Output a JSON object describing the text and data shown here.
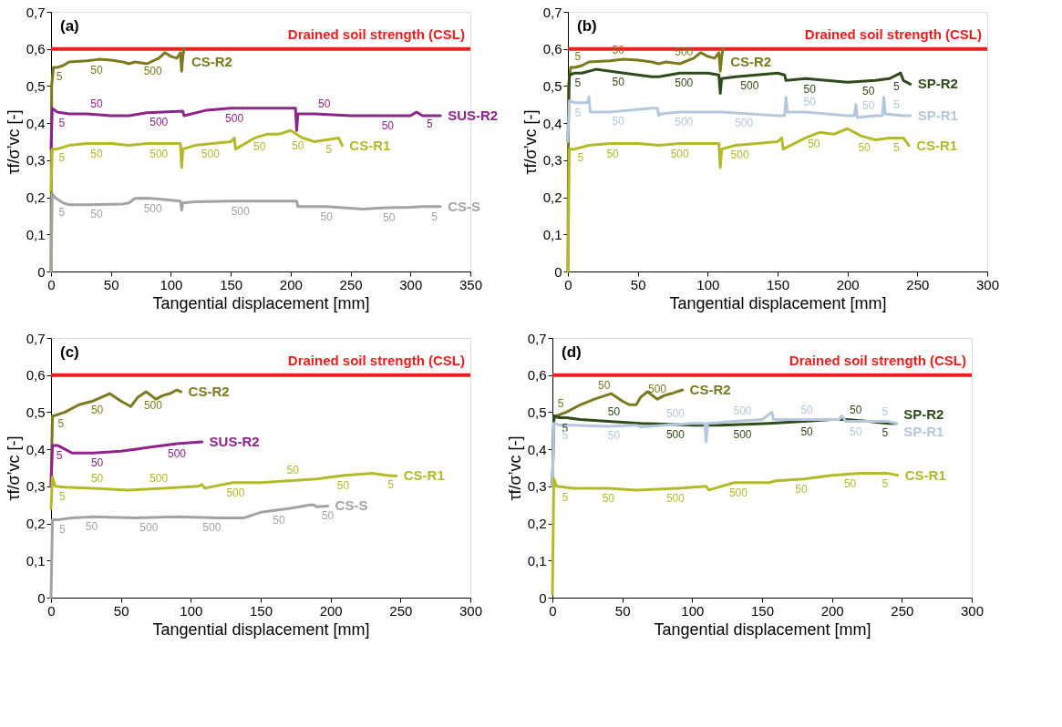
{
  "chart_data": [
    {
      "type": "line",
      "title": "(a)",
      "xlabel": "Tangential displacement [mm]",
      "ylabel": "τf/σ’vc [-]",
      "xlim": [
        0,
        350
      ],
      "xticks": [
        0,
        50,
        100,
        150,
        200,
        250,
        300,
        350
      ],
      "ylim": [
        0,
        0.7
      ],
      "yticks": [
        {
          "value": 0,
          "label": "0"
        },
        {
          "value": 0.1,
          "label": "0,1"
        },
        {
          "value": 0.2,
          "label": "0,2"
        },
        {
          "value": 0.3,
          "label": "0,3"
        },
        {
          "value": 0.4,
          "label": "0,4"
        },
        {
          "value": 0.5,
          "label": "0,5"
        },
        {
          "value": 0.6,
          "label": "0,6"
        },
        {
          "value": 0.7,
          "label": "0,7"
        }
      ],
      "ref_lines": [
        {
          "axis": "y",
          "value": 0.6,
          "label": "Drained soil strength (CSL)",
          "color": "#ee1c1c"
        }
      ],
      "series": [
        {
          "name": "CS-R2",
          "color": "#7b7a1f",
          "x": [
            0,
            0.5,
            2,
            5,
            10,
            15,
            30,
            40,
            50,
            60,
            65,
            70,
            80,
            90,
            95,
            100,
            105,
            108,
            109,
            110,
            111
          ],
          "values": [
            0,
            0.5,
            0.55,
            0.55,
            0.555,
            0.565,
            0.568,
            0.572,
            0.57,
            0.565,
            0.56,
            0.565,
            0.56,
            0.575,
            0.59,
            0.58,
            0.575,
            0.59,
            0.54,
            0.58,
            0.6
          ]
        },
        {
          "name": "SUS-R2",
          "color": "#8e2489",
          "x": [
            0,
            1,
            5,
            15,
            30,
            50,
            65,
            80,
            110,
            111,
            130,
            150,
            180,
            200,
            204,
            205,
            206,
            220,
            250,
            280,
            300,
            305,
            310,
            325
          ],
          "values": [
            0.33,
            0.44,
            0.43,
            0.425,
            0.425,
            0.42,
            0.42,
            0.428,
            0.432,
            0.42,
            0.435,
            0.44,
            0.44,
            0.44,
            0.44,
            0.38,
            0.425,
            0.425,
            0.42,
            0.42,
            0.42,
            0.43,
            0.42,
            0.42
          ]
        },
        {
          "name": "CS-R1",
          "color": "#b3ba2a",
          "x": [
            0,
            1,
            5,
            15,
            30,
            50,
            65,
            80,
            100,
            108,
            109,
            110,
            120,
            150,
            153,
            154,
            170,
            180,
            190,
            200,
            210,
            220,
            230,
            240,
            243
          ],
          "values": [
            0.22,
            0.33,
            0.33,
            0.34,
            0.345,
            0.345,
            0.34,
            0.345,
            0.345,
            0.345,
            0.28,
            0.33,
            0.34,
            0.35,
            0.36,
            0.33,
            0.36,
            0.37,
            0.37,
            0.38,
            0.36,
            0.35,
            0.355,
            0.36,
            0.34
          ]
        },
        {
          "name": "CS-S",
          "color": "#a3a3a3",
          "x": [
            0,
            1,
            3,
            10,
            15,
            30,
            60,
            65,
            70,
            80,
            90,
            108,
            109,
            110,
            120,
            150,
            200,
            205,
            206,
            230,
            260,
            280,
            300,
            310,
            325
          ],
          "values": [
            0,
            0.21,
            0.2,
            0.185,
            0.18,
            0.18,
            0.182,
            0.185,
            0.197,
            0.198,
            0.195,
            0.19,
            0.165,
            0.185,
            0.188,
            0.19,
            0.19,
            0.19,
            0.175,
            0.175,
            0.168,
            0.172,
            0.173,
            0.175,
            0.175
          ]
        }
      ],
      "annotations": [
        {
          "text": "5",
          "x": 7,
          "y": 0.552
        },
        {
          "text": "50",
          "x": 38,
          "y": 0.571
        },
        {
          "text": "500",
          "x": 85,
          "y": 0.567
        },
        {
          "text": "5",
          "x": 9,
          "y": 0.427
        },
        {
          "text": "50",
          "x": 38,
          "y": 0.424
        },
        {
          "text": "500",
          "x": 90,
          "y": 0.429
        },
        {
          "text": "500",
          "x": 153,
          "y": 0.44
        },
        {
          "text": "50",
          "x": 228,
          "y": 0.424
        },
        {
          "text": "50",
          "x": 281,
          "y": 0.42
        },
        {
          "text": "5",
          "x": 316,
          "y": 0.425
        },
        {
          "text": "5",
          "x": 9,
          "y": 0.334
        },
        {
          "text": "50",
          "x": 38,
          "y": 0.345
        },
        {
          "text": "500",
          "x": 90,
          "y": 0.345
        },
        {
          "text": "500",
          "x": 133,
          "y": 0.344
        },
        {
          "text": "50",
          "x": 174,
          "y": 0.364
        },
        {
          "text": "50",
          "x": 206,
          "y": 0.367
        },
        {
          "text": "5",
          "x": 232,
          "y": 0.356
        },
        {
          "text": "5",
          "x": 9,
          "y": 0.187
        },
        {
          "text": "50",
          "x": 38,
          "y": 0.181
        },
        {
          "text": "500",
          "x": 85,
          "y": 0.196
        },
        {
          "text": "500",
          "x": 158,
          "y": 0.19
        },
        {
          "text": "50",
          "x": 230,
          "y": 0.175
        },
        {
          "text": "50",
          "x": 282,
          "y": 0.172
        },
        {
          "text": "5",
          "x": 320,
          "y": 0.175
        }
      ]
    },
    {
      "type": "line",
      "title": "(b)",
      "xlabel": "Tangential displacement [mm]",
      "ylabel": "τf/σ’vc [-]",
      "xlim": [
        0,
        300
      ],
      "xticks": [
        0,
        50,
        100,
        150,
        200,
        250,
        300
      ],
      "ylim": [
        0,
        0.7
      ],
      "yticks": [
        {
          "value": 0,
          "label": "0"
        },
        {
          "value": 0.1,
          "label": "0,1"
        },
        {
          "value": 0.2,
          "label": "0,2"
        },
        {
          "value": 0.3,
          "label": "0,3"
        },
        {
          "value": 0.4,
          "label": "0,4"
        },
        {
          "value": 0.5,
          "label": "0,5"
        },
        {
          "value": 0.6,
          "label": "0,6"
        },
        {
          "value": 0.7,
          "label": "0,7"
        }
      ],
      "ref_lines": [
        {
          "axis": "y",
          "value": 0.6,
          "label": "Drained soil strength (CSL)",
          "color": "#ee1c1c"
        }
      ],
      "series": [
        {
          "name": "CS-R2",
          "color": "#7b7a1f",
          "x": [
            0,
            0.5,
            2,
            5,
            10,
            15,
            30,
            40,
            50,
            60,
            65,
            70,
            80,
            90,
            95,
            100,
            105,
            108,
            109,
            110,
            111
          ],
          "values": [
            0,
            0.5,
            0.55,
            0.55,
            0.555,
            0.565,
            0.568,
            0.572,
            0.57,
            0.565,
            0.56,
            0.565,
            0.56,
            0.575,
            0.59,
            0.58,
            0.575,
            0.59,
            0.54,
            0.58,
            0.6
          ]
        },
        {
          "name": "SP-R2",
          "color": "#2f4a1b",
          "x": [
            0,
            1,
            5,
            10,
            20,
            40,
            60,
            65,
            80,
            100,
            108,
            109,
            110,
            120,
            150,
            155,
            156,
            170,
            200,
            220,
            230,
            238,
            240,
            245
          ],
          "values": [
            0.35,
            0.53,
            0.535,
            0.535,
            0.545,
            0.535,
            0.525,
            0.525,
            0.535,
            0.535,
            0.53,
            0.48,
            0.52,
            0.525,
            0.535,
            0.53,
            0.515,
            0.52,
            0.51,
            0.515,
            0.52,
            0.535,
            0.515,
            0.505
          ]
        },
        {
          "name": "SP-R1",
          "color": "#b5c7dd",
          "x": [
            0,
            1,
            5,
            14,
            15,
            16,
            30,
            60,
            64,
            65,
            66,
            80,
            100,
            110,
            130,
            150,
            155,
            156,
            157,
            170,
            200,
            205,
            206,
            207,
            220,
            225,
            226,
            227,
            240,
            245
          ],
          "values": [
            0.35,
            0.46,
            0.455,
            0.455,
            0.47,
            0.43,
            0.43,
            0.44,
            0.44,
            0.42,
            0.425,
            0.43,
            0.43,
            0.43,
            0.425,
            0.42,
            0.42,
            0.47,
            0.43,
            0.43,
            0.42,
            0.42,
            0.45,
            0.415,
            0.42,
            0.42,
            0.47,
            0.425,
            0.42,
            0.42
          ]
        },
        {
          "name": "CS-R1",
          "color": "#b3ba2a",
          "x": [
            0,
            1,
            5,
            15,
            30,
            50,
            65,
            80,
            100,
            108,
            109,
            110,
            120,
            150,
            153,
            154,
            170,
            180,
            190,
            200,
            210,
            220,
            230,
            240,
            244
          ],
          "values": [
            0,
            0.33,
            0.33,
            0.34,
            0.345,
            0.345,
            0.34,
            0.345,
            0.345,
            0.345,
            0.28,
            0.33,
            0.34,
            0.35,
            0.36,
            0.33,
            0.36,
            0.375,
            0.37,
            0.385,
            0.365,
            0.355,
            0.36,
            0.36,
            0.34
          ]
        }
      ],
      "annotations": [
        {
          "text": "5",
          "x": 7,
          "y": 0.552
        },
        {
          "text": "50",
          "x": 36,
          "y": 0.57
        },
        {
          "text": "500",
          "x": 83,
          "y": 0.565
        },
        {
          "text": "5",
          "x": 7,
          "y": 0.535
        },
        {
          "text": "50",
          "x": 36,
          "y": 0.537
        },
        {
          "text": "500",
          "x": 83,
          "y": 0.535
        },
        {
          "text": "500",
          "x": 130,
          "y": 0.528
        },
        {
          "text": "50",
          "x": 173,
          "y": 0.519
        },
        {
          "text": "50",
          "x": 215,
          "y": 0.514
        },
        {
          "text": "5",
          "x": 235,
          "y": 0.525
        },
        {
          "text": "5",
          "x": 7,
          "y": 0.455
        },
        {
          "text": "50",
          "x": 36,
          "y": 0.432
        },
        {
          "text": "500",
          "x": 83,
          "y": 0.43
        },
        {
          "text": "500",
          "x": 126,
          "y": 0.428
        },
        {
          "text": "50",
          "x": 173,
          "y": 0.43
        },
        {
          "text": "50",
          "x": 215,
          "y": 0.42
        },
        {
          "text": "5",
          "x": 235,
          "y": 0.423
        },
        {
          "text": "5",
          "x": 9,
          "y": 0.334
        },
        {
          "text": "50",
          "x": 32,
          "y": 0.345
        },
        {
          "text": "500",
          "x": 80,
          "y": 0.345
        },
        {
          "text": "500",
          "x": 123,
          "y": 0.341
        },
        {
          "text": "50",
          "x": 176,
          "y": 0.37
        },
        {
          "text": "50",
          "x": 212,
          "y": 0.362
        },
        {
          "text": "5",
          "x": 235,
          "y": 0.36
        }
      ]
    },
    {
      "type": "line",
      "title": "(c)",
      "xlabel": "Tangential displacement [mm]",
      "ylabel": "τf/σ’vc [-]",
      "xlim": [
        0,
        300
      ],
      "xticks": [
        0,
        50,
        100,
        150,
        200,
        250,
        300
      ],
      "ylim": [
        0,
        0.7
      ],
      "yticks": [
        {
          "value": 0,
          "label": "0"
        },
        {
          "value": 0.1,
          "label": "0,1"
        },
        {
          "value": 0.2,
          "label": "0,2"
        },
        {
          "value": 0.3,
          "label": "0,3"
        },
        {
          "value": 0.4,
          "label": "0,4"
        },
        {
          "value": 0.5,
          "label": "0,5"
        },
        {
          "value": 0.6,
          "label": "0,6"
        },
        {
          "value": 0.7,
          "label": "0,7"
        }
      ],
      "ref_lines": [
        {
          "axis": "y",
          "value": 0.6,
          "label": "Drained soil strength (CSL)",
          "color": "#ee1c1c"
        }
      ],
      "series": [
        {
          "name": "CS-R2",
          "color": "#7b7a1f",
          "x": [
            0,
            1,
            2,
            10,
            20,
            30,
            42,
            50,
            57,
            62,
            68,
            75,
            80,
            85,
            90,
            93
          ],
          "values": [
            0.3,
            0.49,
            0.49,
            0.5,
            0.52,
            0.53,
            0.55,
            0.53,
            0.515,
            0.54,
            0.555,
            0.535,
            0.545,
            0.55,
            0.56,
            0.555
          ]
        },
        {
          "name": "SUS-R2",
          "color": "#8e2489",
          "x": [
            0,
            1,
            5,
            10,
            15,
            30,
            50,
            60,
            70,
            90,
            108
          ],
          "values": [
            0.3,
            0.41,
            0.41,
            0.4,
            0.39,
            0.39,
            0.395,
            0.4,
            0.405,
            0.415,
            0.42
          ]
        },
        {
          "name": "CS-R1",
          "color": "#b3ba2a",
          "x": [
            0,
            1,
            3,
            10,
            30,
            55,
            80,
            105,
            108,
            110,
            130,
            150,
            170,
            190,
            210,
            230,
            240,
            247
          ],
          "values": [
            0.24,
            0.325,
            0.3,
            0.298,
            0.295,
            0.29,
            0.295,
            0.3,
            0.305,
            0.295,
            0.31,
            0.31,
            0.315,
            0.32,
            0.33,
            0.335,
            0.33,
            0.328
          ]
        },
        {
          "name": "CS-S",
          "color": "#a3a3a3",
          "x": [
            0,
            1,
            5,
            15,
            30,
            60,
            90,
            120,
            138,
            150,
            170,
            185,
            188,
            190,
            198
          ],
          "values": [
            0,
            0.21,
            0.21,
            0.215,
            0.218,
            0.215,
            0.218,
            0.215,
            0.215,
            0.23,
            0.24,
            0.25,
            0.25,
            0.245,
            0.247
          ]
        }
      ],
      "annotations": [
        {
          "text": "5",
          "x": 7,
          "y": 0.497
        },
        {
          "text": "50",
          "x": 33,
          "y": 0.532
        },
        {
          "text": "500",
          "x": 73,
          "y": 0.545
        },
        {
          "text": "5",
          "x": 6,
          "y": 0.41
        },
        {
          "text": "50",
          "x": 33,
          "y": 0.39
        },
        {
          "text": "500",
          "x": 90,
          "y": 0.415
        },
        {
          "text": "5",
          "x": 8,
          "y": 0.299
        },
        {
          "text": "50",
          "x": 33,
          "y": 0.294
        },
        {
          "text": "500",
          "x": 77,
          "y": 0.294
        },
        {
          "text": "500",
          "x": 132,
          "y": 0.31
        },
        {
          "text": "50",
          "x": 173,
          "y": 0.316
        },
        {
          "text": "50",
          "x": 209,
          "y": 0.33
        },
        {
          "text": "5",
          "x": 243,
          "y": 0.331
        },
        {
          "text": "5",
          "x": 8,
          "y": 0.212
        },
        {
          "text": "50",
          "x": 29,
          "y": 0.218
        },
        {
          "text": "500",
          "x": 70,
          "y": 0.216
        },
        {
          "text": "500",
          "x": 115,
          "y": 0.216
        },
        {
          "text": "50",
          "x": 163,
          "y": 0.236
        },
        {
          "text": "50",
          "x": 198,
          "y": 0.247
        }
      ]
    },
    {
      "type": "line",
      "title": "(d)",
      "xlabel": "Tangential displacement [mm]",
      "ylabel": "τf/σ’vc [-]",
      "xlim": [
        0,
        300
      ],
      "xticks": [
        0,
        50,
        100,
        150,
        200,
        250,
        300
      ],
      "ylim": [
        0,
        0.7
      ],
      "yticks": [
        {
          "value": 0,
          "label": "0"
        },
        {
          "value": 0.1,
          "label": "0,1"
        },
        {
          "value": 0.2,
          "label": "0,2"
        },
        {
          "value": 0.3,
          "label": "0,3"
        },
        {
          "value": 0.4,
          "label": "0,4"
        },
        {
          "value": 0.5,
          "label": "0,5"
        },
        {
          "value": 0.6,
          "label": "0,6"
        },
        {
          "value": 0.7,
          "label": "0,7"
        }
      ],
      "ref_lines": [
        {
          "axis": "y",
          "value": 0.6,
          "label": "Drained soil strength (CSL)",
          "color": "#ee1c1c"
        }
      ],
      "series": [
        {
          "name": "CS-R2",
          "color": "#7b7a1f",
          "x": [
            0,
            1,
            3,
            10,
            20,
            30,
            42,
            50,
            55,
            60,
            63,
            68,
            75,
            80,
            85,
            93
          ],
          "values": [
            0.3,
            0.48,
            0.49,
            0.5,
            0.52,
            0.535,
            0.55,
            0.53,
            0.52,
            0.52,
            0.54,
            0.555,
            0.535,
            0.545,
            0.55,
            0.56
          ]
        },
        {
          "name": "SP-R2",
          "color": "#2f4a1b",
          "x": [
            0,
            1,
            5,
            10,
            20,
            40,
            63,
            80,
            100,
            110,
            120,
            155,
            180,
            200,
            210,
            226,
            240,
            246
          ],
          "values": [
            0.3,
            0.49,
            0.485,
            0.485,
            0.48,
            0.475,
            0.47,
            0.468,
            0.465,
            0.465,
            0.465,
            0.47,
            0.475,
            0.48,
            0.48,
            0.475,
            0.47,
            0.47
          ]
        },
        {
          "name": "SP-R1",
          "color": "#b5c7dd",
          "x": [
            0,
            1,
            5,
            15,
            40,
            60,
            63,
            80,
            100,
            109,
            110,
            111,
            130,
            150,
            157,
            158,
            180,
            205,
            207,
            210,
            226,
            240,
            246
          ],
          "values": [
            0.3,
            0.47,
            0.465,
            0.465,
            0.462,
            0.465,
            0.46,
            0.465,
            0.47,
            0.47,
            0.42,
            0.47,
            0.475,
            0.48,
            0.5,
            0.48,
            0.48,
            0.48,
            0.49,
            0.475,
            0.475,
            0.475,
            0.47
          ]
        },
        {
          "name": "CS-R1",
          "color": "#b3ba2a",
          "x": [
            0,
            1,
            3,
            15,
            40,
            60,
            90,
            110,
            112,
            130,
            155,
            160,
            180,
            200,
            220,
            230,
            240,
            247
          ],
          "values": [
            0.01,
            0.32,
            0.3,
            0.295,
            0.295,
            0.29,
            0.295,
            0.3,
            0.29,
            0.31,
            0.31,
            0.315,
            0.32,
            0.33,
            0.335,
            0.335,
            0.335,
            0.33
          ]
        }
      ],
      "annotations": [
        {
          "text": "5",
          "x": 6,
          "y": 0.495
        },
        {
          "text": "50",
          "x": 37,
          "y": 0.545
        },
        {
          "text": "500",
          "x": 75,
          "y": 0.535
        },
        {
          "text": "5",
          "x": 9,
          "y": 0.485
        },
        {
          "text": "50",
          "x": 44,
          "y": 0.474
        },
        {
          "text": "500",
          "x": 88,
          "y": 0.466
        },
        {
          "text": "500",
          "x": 136,
          "y": 0.467
        },
        {
          "text": "50",
          "x": 182,
          "y": 0.475
        },
        {
          "text": "50",
          "x": 217,
          "y": 0.478
        },
        {
          "text": "5",
          "x": 238,
          "y": 0.471
        },
        {
          "text": "5",
          "x": 9,
          "y": 0.465
        },
        {
          "text": "50",
          "x": 44,
          "y": 0.463
        },
        {
          "text": "500",
          "x": 88,
          "y": 0.468
        },
        {
          "text": "500",
          "x": 136,
          "y": 0.477
        },
        {
          "text": "50",
          "x": 182,
          "y": 0.48
        },
        {
          "text": "50",
          "x": 217,
          "y": 0.475
        },
        {
          "text": "5",
          "x": 238,
          "y": 0.475
        },
        {
          "text": "5",
          "x": 9,
          "y": 0.297
        },
        {
          "text": "50",
          "x": 40,
          "y": 0.295
        },
        {
          "text": "500",
          "x": 88,
          "y": 0.295
        },
        {
          "text": "500",
          "x": 133,
          "y": 0.31
        },
        {
          "text": "50",
          "x": 178,
          "y": 0.319
        },
        {
          "text": "50",
          "x": 213,
          "y": 0.333
        },
        {
          "text": "5",
          "x": 238,
          "y": 0.335
        }
      ]
    }
  ]
}
